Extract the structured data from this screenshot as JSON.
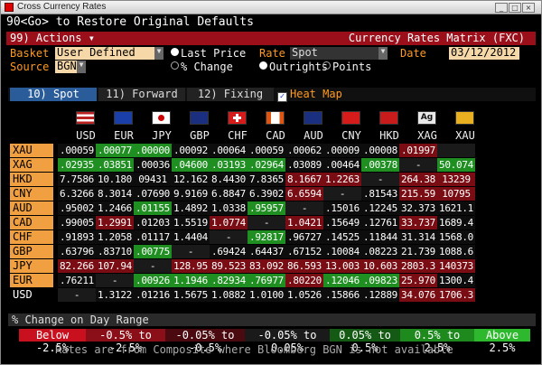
{
  "window": {
    "title": "Cross Currency Rates"
  },
  "command_line": "90<Go> to Restore Original Defaults",
  "menu": {
    "actions_label": "99) Actions  ▾",
    "title": "Currency Rates Matrix (FXC)"
  },
  "controls": {
    "basket_label": "Basket",
    "basket_value": "User Defined",
    "source_label": "Source",
    "source_value": "BGN",
    "price_options": [
      "Last Price",
      "% Change"
    ],
    "rate_label": "Rate",
    "rate_value": "Spot",
    "rate_options": [
      "Outrights",
      "Points"
    ],
    "date_label": "Date",
    "date_value": "03/12/2012"
  },
  "tabs": [
    "10) Spot",
    "11) Forward",
    "12) Fixing"
  ],
  "heatmap": {
    "label": "Heat Map",
    "checked": "✓"
  },
  "columns": [
    "USD",
    "EUR",
    "JPY",
    "GBP",
    "CHF",
    "CAD",
    "AUD",
    "CNY",
    "HKD",
    "XAG",
    "XAU"
  ],
  "rows": [
    {
      "label": "XAU",
      "cells": [
        ".00059",
        ".00077",
        ".00000",
        ".00092",
        ".00064",
        ".00059",
        ".00062",
        ".00009",
        ".00008",
        ".01997",
        ""
      ],
      "heat": [
        "D",
        "G",
        "G",
        "D",
        "D",
        "D",
        "D",
        "D",
        "D",
        "R",
        "X"
      ]
    },
    {
      "label": "XAG",
      "cells": [
        ".02935",
        ".03851",
        ".00036",
        ".04600",
        ".03193",
        ".02964",
        ".03089",
        ".00464",
        ".00378",
        "-",
        "50.074"
      ],
      "heat": [
        "G",
        "G",
        "D",
        "G",
        "G",
        "G",
        "D",
        "D",
        "G",
        "X",
        "G"
      ]
    },
    {
      "label": "HKD",
      "cells": [
        "7.7586",
        "10.180",
        "09431",
        "12.162",
        "8.4430",
        "7.8365",
        "8.1667",
        "1.2263",
        "-",
        "264.38",
        "13239"
      ],
      "heat": [
        "D",
        "D",
        "D",
        "D",
        "D",
        "D",
        "R",
        "R",
        "X",
        "R",
        "R"
      ]
    },
    {
      "label": "CNY",
      "cells": [
        "6.3266",
        "8.3014",
        ".07690",
        "9.9169",
        "6.8847",
        "6.3902",
        "6.6594",
        "-",
        ".81543",
        "215.59",
        "10795"
      ],
      "heat": [
        "D",
        "D",
        "D",
        "D",
        "D",
        "D",
        "R",
        "X",
        "D",
        "R",
        "R"
      ]
    },
    {
      "label": "AUD",
      "cells": [
        ".95002",
        "1.2466",
        ".01155",
        "1.4892",
        "1.0338",
        ".95957",
        "-",
        ".15016",
        ".12245",
        "32.373",
        "1621.1"
      ],
      "heat": [
        "D",
        "D",
        "G",
        "D",
        "D",
        "G",
        "X",
        "D",
        "D",
        "D",
        "D"
      ]
    },
    {
      "label": "CAD",
      "cells": [
        ".99005",
        "1.2991",
        ".01203",
        "1.5519",
        "1.0774",
        "-",
        "1.0421",
        ".15649",
        ".12761",
        "33.737",
        "1689.4"
      ],
      "heat": [
        "D",
        "R",
        "D",
        "D",
        "R",
        "X",
        "R",
        "D",
        "D",
        "R",
        "D"
      ]
    },
    {
      "label": "CHF",
      "cells": [
        ".91893",
        "1.2058",
        ".01117",
        "1.4404",
        "-",
        ".92817",
        ".96727",
        ".14525",
        ".11844",
        "31.314",
        "1568.0"
      ],
      "heat": [
        "D",
        "D",
        "D",
        "D",
        "X",
        "G",
        "D",
        "D",
        "D",
        "D",
        "D"
      ]
    },
    {
      "label": "GBP",
      "cells": [
        ".63796",
        ".83710",
        ".00775",
        "-",
        ".69424",
        ".64437",
        ".67152",
        ".10084",
        ".08223",
        "21.739",
        "1088.6"
      ],
      "heat": [
        "D",
        "D",
        "G",
        "X",
        "D",
        "D",
        "D",
        "D",
        "D",
        "D",
        "D"
      ]
    },
    {
      "label": "JPY",
      "cells": [
        "82.266",
        "107.94",
        "-",
        "128.95",
        "89.523",
        "83.092",
        "86.593",
        "13.003",
        "10.603",
        "2803.3",
        "140373"
      ],
      "heat": [
        "R",
        "R",
        "X",
        "R",
        "R",
        "R",
        "R",
        "R",
        "R",
        "R",
        "R"
      ]
    },
    {
      "label": "EUR",
      "cells": [
        ".76211",
        "-",
        ".00926",
        "1.1946",
        ".82934",
        ".76977",
        ".80220",
        ".12046",
        ".09823",
        "25.970",
        "1300.4"
      ],
      "heat": [
        "D",
        "X",
        "G",
        "G",
        "G",
        "G",
        "R",
        "G",
        "G",
        "R",
        "D"
      ]
    },
    {
      "label": "USD",
      "cells": [
        "-",
        "1.3122",
        ".01216",
        "1.5675",
        "1.0882",
        "1.0100",
        "1.0526",
        ".15866",
        ".12889",
        "34.076",
        "1706.3"
      ],
      "heat": [
        "X",
        "D",
        "D",
        "D",
        "D",
        "D",
        "D",
        "D",
        "D",
        "R",
        "R"
      ]
    }
  ],
  "change_range": {
    "label": "% Change on Day Range",
    "legend": [
      {
        "text": "Below -2.5%",
        "color": "#c8101e"
      },
      {
        "text": "-0.5% to -2.5%",
        "color": "#8a0f18"
      },
      {
        "text": "-0.05% to -0.5%",
        "color": "#4a0a10"
      },
      {
        "text": "-0.05% to 0.05%",
        "color": "#1a1a1a"
      },
      {
        "text": "0.05% to 0.5%",
        "color": "#145a14"
      },
      {
        "text": "0.5% to 2.5%",
        "color": "#1e8a1e"
      },
      {
        "text": "Above 2.5%",
        "color": "#2eb82e"
      }
    ]
  },
  "footnote": "Rates are from Composite where Bloomberg BGN is not available",
  "colors": {
    "D": "#0d0d0d",
    "G": "#1f8f22",
    "R": "#7a0d14",
    "X": "#1a1a1a"
  }
}
